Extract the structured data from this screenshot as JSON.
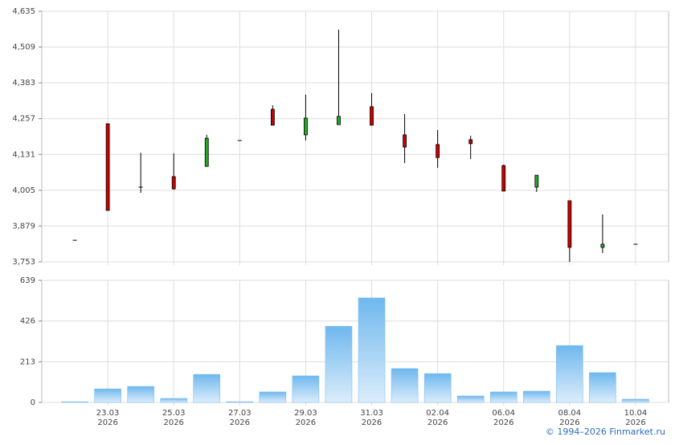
{
  "chart_data": [
    {
      "type": "candlestick",
      "series": [
        {
          "up_color": "#22aa22",
          "down_color": "#cc0000",
          "open": [
            3829,
            4239,
            4016,
            4053,
            4089,
            4180,
            4290,
            4200,
            4236,
            4299,
            4200,
            4166,
            4183,
            4092,
            4016,
            3968,
            3804,
            3815
          ],
          "high": [
            3829,
            4239,
            4137,
            4135,
            4200,
            4180,
            4304,
            4341,
            4570,
            4347,
            4273,
            4217,
            4197,
            4095,
            4058,
            3968,
            3920,
            3815
          ],
          "low": [
            3829,
            3934,
            3996,
            4007,
            4089,
            4180,
            4234,
            4180,
            4236,
            4234,
            4101,
            4084,
            4115,
            4002,
            3999,
            3753,
            3784,
            3815
          ],
          "close": [
            3829,
            3934,
            4016,
            4010,
            4188,
            4180,
            4234,
            4259,
            4265,
            4234,
            4157,
            4120,
            4169,
            4002,
            4058,
            3804,
            3815,
            3815
          ]
        }
      ],
      "ylim": [
        3753,
        4635
      ],
      "yticks": [
        {
          "value": 3753,
          "label": "3,753"
        },
        {
          "value": 3879,
          "label": "3,879"
        },
        {
          "value": 4005,
          "label": "4,005"
        },
        {
          "value": 4131,
          "label": "4,131"
        },
        {
          "value": 4257,
          "label": "4,257"
        },
        {
          "value": 4383,
          "label": "4,383"
        },
        {
          "value": 4509,
          "label": "4,509"
        },
        {
          "value": 4635,
          "label": "4,635"
        }
      ],
      "grid": true
    },
    {
      "type": "bar",
      "categories": [
        null,
        "23.03\n2026",
        null,
        "25.03\n2026",
        null,
        "27.03\n2026",
        null,
        "29.03\n2026",
        null,
        "31.03\n2026",
        null,
        "02.04\n2026",
        null,
        "06.04\n2026",
        null,
        "08.04\n2026",
        null,
        "10.04\n2026"
      ],
      "values": [
        4,
        71,
        84,
        21,
        147,
        4,
        55,
        139,
        399,
        547,
        177,
        151,
        34,
        55,
        59,
        298,
        156,
        17
      ],
      "color": "#6fb8ee",
      "ylim": [
        0,
        639
      ],
      "yticks": [
        0,
        213,
        426,
        639
      ],
      "grid": true
    }
  ],
  "footer": "© 1994–2026 Finmarket.ru"
}
